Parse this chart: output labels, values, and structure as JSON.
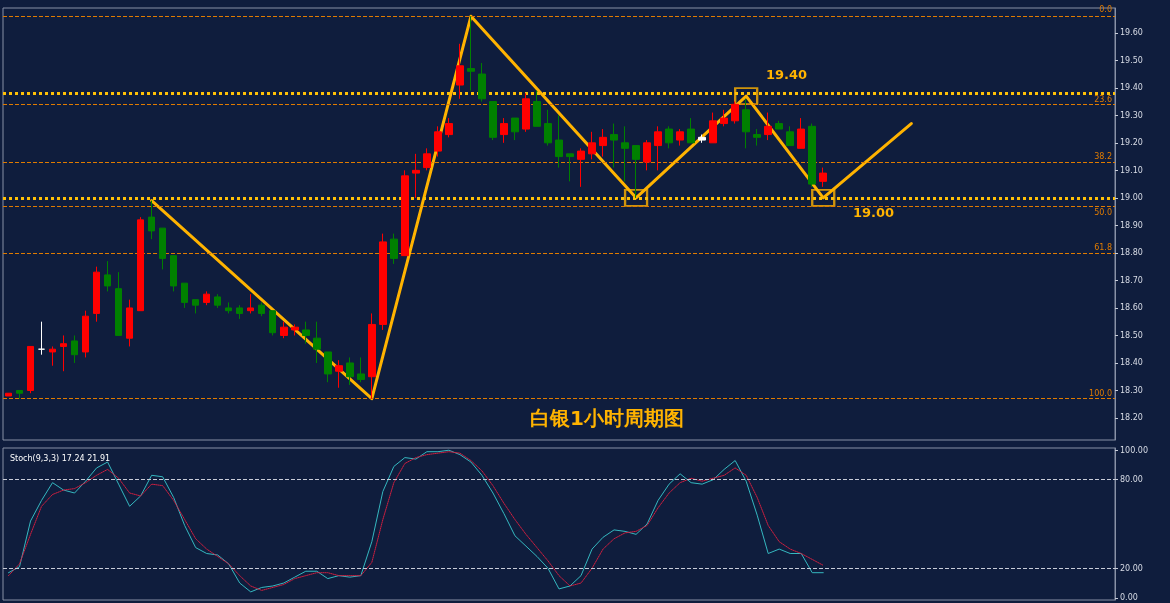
{
  "chart_data": [
    {
      "type": "candlestick",
      "title": "白银1小时周期图",
      "categories": [
        null,
        null,
        null,
        null,
        null,
        null,
        null,
        null,
        null,
        null,
        null,
        null,
        null,
        null,
        null,
        null,
        null,
        null,
        null,
        null,
        null,
        null,
        null,
        null,
        null,
        null,
        null,
        null,
        null,
        null,
        null,
        null,
        null,
        null,
        null,
        null,
        null,
        null,
        null,
        null,
        null,
        null,
        null,
        null,
        null,
        null,
        null,
        null,
        null,
        null,
        null,
        null,
        null,
        null,
        null,
        null,
        null,
        null,
        null,
        null,
        null,
        null,
        null,
        null,
        null,
        null,
        null,
        null,
        null,
        null,
        null,
        null,
        null,
        null,
        null,
        null,
        null,
        null,
        null,
        null,
        null,
        null,
        null,
        null,
        null,
        null,
        null,
        null,
        null,
        null,
        null,
        null,
        null,
        null,
        null,
        null,
        null,
        null,
        null,
        null,
        null
      ],
      "ohlc": [
        [
          18.28,
          18.29,
          18.28,
          18.29
        ],
        [
          18.3,
          18.3,
          18.27,
          18.29
        ],
        [
          18.3,
          18.46,
          18.29,
          18.46
        ],
        [
          18.45,
          18.55,
          18.43,
          18.45
        ],
        [
          18.44,
          18.46,
          18.39,
          18.45
        ],
        [
          18.46,
          18.5,
          18.37,
          18.47
        ],
        [
          18.48,
          18.5,
          18.4,
          18.43
        ],
        [
          18.44,
          18.59,
          18.42,
          18.57
        ],
        [
          18.58,
          18.75,
          18.55,
          18.73
        ],
        [
          18.72,
          18.77,
          18.66,
          18.68
        ],
        [
          18.67,
          18.73,
          18.5,
          18.5
        ],
        [
          18.49,
          18.63,
          18.46,
          18.6
        ],
        [
          18.59,
          18.93,
          18.59,
          18.92
        ],
        [
          18.93,
          18.99,
          18.85,
          18.88
        ],
        [
          18.89,
          18.89,
          18.74,
          18.78
        ],
        [
          18.79,
          18.79,
          18.66,
          18.68
        ],
        [
          18.69,
          18.69,
          18.6,
          18.62
        ],
        [
          18.63,
          18.63,
          18.58,
          18.61
        ],
        [
          18.62,
          18.66,
          18.61,
          18.65
        ],
        [
          18.64,
          18.65,
          18.6,
          18.61
        ],
        [
          18.6,
          18.62,
          18.58,
          18.59
        ],
        [
          18.6,
          18.61,
          18.56,
          18.58
        ],
        [
          18.59,
          18.65,
          18.58,
          18.6
        ],
        [
          18.61,
          18.62,
          18.57,
          18.58
        ],
        [
          18.59,
          18.59,
          18.5,
          18.51
        ],
        [
          18.5,
          18.55,
          18.49,
          18.53
        ],
        [
          18.52,
          18.54,
          18.5,
          18.53
        ],
        [
          18.52,
          18.55,
          18.47,
          18.5
        ],
        [
          18.49,
          18.55,
          18.4,
          18.45
        ],
        [
          18.44,
          18.44,
          18.33,
          18.36
        ],
        [
          18.37,
          18.41,
          18.31,
          18.39
        ],
        [
          18.4,
          18.42,
          18.32,
          18.35
        ],
        [
          18.36,
          18.42,
          18.33,
          18.34
        ],
        [
          18.35,
          18.58,
          18.27,
          18.54
        ],
        [
          18.54,
          18.87,
          18.52,
          18.84
        ],
        [
          18.85,
          18.87,
          18.76,
          18.78
        ],
        [
          18.79,
          19.1,
          18.79,
          19.08
        ],
        [
          19.09,
          19.16,
          19.0,
          19.1
        ],
        [
          19.11,
          19.18,
          19.1,
          19.16
        ],
        [
          19.17,
          19.26,
          19.15,
          19.24
        ],
        [
          19.23,
          19.29,
          19.22,
          19.27
        ],
        [
          19.41,
          19.56,
          19.36,
          19.48
        ],
        [
          19.47,
          19.66,
          19.39,
          19.46
        ],
        [
          19.45,
          19.49,
          19.35,
          19.36
        ],
        [
          19.35,
          19.35,
          19.21,
          19.22
        ],
        [
          19.23,
          19.29,
          19.2,
          19.27
        ],
        [
          19.29,
          19.29,
          19.21,
          19.24
        ],
        [
          19.25,
          19.38,
          19.24,
          19.36
        ],
        [
          19.35,
          19.39,
          19.26,
          19.26
        ],
        [
          19.27,
          19.32,
          19.19,
          19.2
        ],
        [
          19.21,
          19.3,
          19.11,
          19.15
        ],
        [
          19.16,
          19.16,
          19.06,
          19.15
        ],
        [
          19.14,
          19.18,
          19.04,
          19.17
        ],
        [
          19.16,
          19.24,
          19.14,
          19.2
        ],
        [
          19.19,
          19.25,
          19.15,
          19.22
        ],
        [
          19.23,
          19.27,
          19.11,
          19.21
        ],
        [
          19.2,
          19.26,
          19.06,
          19.18
        ],
        [
          19.19,
          19.19,
          19.0,
          19.14
        ],
        [
          19.13,
          19.21,
          19.1,
          19.2
        ],
        [
          19.19,
          19.26,
          19.1,
          19.24
        ],
        [
          19.25,
          19.26,
          19.18,
          19.2
        ],
        [
          19.21,
          19.25,
          19.19,
          19.24
        ],
        [
          19.25,
          19.29,
          19.2,
          19.2
        ],
        [
          19.22,
          19.23,
          19.2,
          19.21
        ],
        [
          19.2,
          19.31,
          19.2,
          19.28
        ],
        [
          19.27,
          19.32,
          19.26,
          19.29
        ],
        [
          19.28,
          19.35,
          19.27,
          19.34
        ],
        [
          19.32,
          19.36,
          19.18,
          19.24
        ],
        [
          19.23,
          19.25,
          19.19,
          19.22
        ],
        [
          19.23,
          19.31,
          19.21,
          19.26
        ],
        [
          19.27,
          19.28,
          19.25,
          19.25
        ],
        [
          19.24,
          19.26,
          19.19,
          19.19
        ],
        [
          19.18,
          19.29,
          19.18,
          19.25
        ],
        [
          19.26,
          19.27,
          19.04,
          19.05
        ],
        [
          19.06,
          19.11,
          19.04,
          19.09
        ],
        null,
        null,
        null,
        null,
        null,
        null,
        null,
        null,
        null,
        null,
        null,
        null,
        null,
        null,
        null,
        null,
        null,
        null,
        null,
        null,
        null,
        null,
        null,
        null,
        null,
        null
      ],
      "colors": [
        "#ff0000",
        "#008000",
        "#ff0000",
        "#ffffff",
        "#ff0000",
        "#ff0000",
        "#008000",
        "#ff0000",
        "#ff0000",
        "#008000",
        "#008000",
        "#ff0000",
        "#ff0000",
        "#008000",
        "#008000",
        "#008000",
        "#008000",
        "#008000",
        "#ff0000",
        "#008000",
        "#008000",
        "#008000",
        "#ff0000",
        "#008000",
        "#008000",
        "#ff0000",
        "#ff0000",
        "#008000",
        "#008000",
        "#008000",
        "#ff0000",
        "#008000",
        "#008000",
        "#ff0000",
        "#ff0000",
        "#008000",
        "#ff0000",
        "#ff0000",
        "#ff0000",
        "#ff0000",
        "#ff0000",
        "#ff0000",
        "#008000",
        "#008000",
        "#008000",
        "#ff0000",
        "#008000",
        "#ff0000",
        "#008000",
        "#008000",
        "#008000",
        "#008000",
        "#ff0000",
        "#ff0000",
        "#ff0000",
        "#008000",
        "#008000",
        "#008000",
        "#ff0000",
        "#ff0000",
        "#008000",
        "#ff0000",
        "#008000",
        "#ffffff",
        "#ff0000",
        "#ff0000",
        "#ff0000",
        "#008000",
        "#008000",
        "#ff0000",
        "#008000",
        "#008000",
        "#ff0000",
        "#008000",
        "#ff0000",
        null,
        null,
        null,
        null,
        null,
        null,
        null,
        null,
        null,
        null,
        null,
        null,
        null,
        null,
        null,
        null,
        null,
        null,
        null,
        null,
        null,
        null,
        null,
        null,
        null,
        null
      ],
      "series": [
        {
          "type": "line",
          "color": "#ffb300",
          "values": [
            null,
            null,
            null,
            null,
            null,
            null,
            null,
            null,
            null,
            null,
            null,
            null,
            null,
            18.99,
            null,
            null,
            null,
            null,
            null,
            null,
            null,
            null,
            null,
            null,
            null,
            null,
            null,
            null,
            null,
            null,
            null,
            null,
            null,
            18.27,
            null,
            null,
            null,
            null,
            null,
            null,
            null,
            null,
            19.66,
            null,
            null,
            null,
            null,
            null,
            null,
            null,
            null,
            null,
            null,
            null,
            null,
            null,
            null,
            19.0,
            null,
            null,
            null,
            null,
            null,
            null,
            null,
            null,
            null,
            19.37,
            null,
            null,
            null,
            null,
            null,
            null,
            19.0,
            null,
            null,
            null,
            null,
            null,
            null,
            null,
            19.27,
            null,
            null,
            null,
            null,
            null,
            null,
            null,
            null,
            null,
            null,
            null,
            null,
            null,
            null,
            null,
            null,
            null,
            null
          ]
        },
        {
          "type": "scatter",
          "color": "#ffb300",
          "marker": "square",
          "values": [
            null,
            null,
            null,
            null,
            null,
            null,
            null,
            null,
            null,
            null,
            null,
            null,
            null,
            null,
            null,
            null,
            null,
            null,
            null,
            null,
            null,
            null,
            null,
            null,
            null,
            null,
            null,
            null,
            null,
            null,
            null,
            null,
            null,
            null,
            null,
            null,
            null,
            null,
            null,
            null,
            null,
            null,
            null,
            null,
            null,
            null,
            null,
            null,
            null,
            null,
            null,
            null,
            null,
            null,
            null,
            null,
            null,
            19.0,
            null,
            null,
            null,
            null,
            null,
            null,
            null,
            null,
            null,
            19.37,
            null,
            null,
            null,
            null,
            null,
            null,
            19.0,
            null,
            null,
            null,
            null,
            null,
            null,
            null,
            null,
            null,
            null,
            null,
            null,
            null,
            null,
            null,
            null,
            null,
            null,
            null,
            null,
            null,
            null,
            null,
            null,
            null,
            null
          ]
        }
      ],
      "ylim": [
        18.12,
        19.69
      ],
      "yticks": [
        {
          "value": 18.2,
          "label": "18.20"
        },
        {
          "value": 18.3,
          "label": "18.30"
        },
        {
          "value": 18.4,
          "label": "18.40"
        },
        {
          "value": 18.5,
          "label": "18.50"
        },
        {
          "value": 18.6,
          "label": "18.60"
        },
        {
          "value": 18.7,
          "label": "18.70"
        },
        {
          "value": 18.8,
          "label": "18.80"
        },
        {
          "value": 18.9,
          "label": "18.90"
        },
        {
          "value": 19.0,
          "label": "19.00"
        },
        {
          "value": 19.1,
          "label": "19.10"
        },
        {
          "value": 19.2,
          "label": "19.20"
        },
        {
          "value": 19.3,
          "label": "19.30"
        },
        {
          "value": 19.4,
          "label": "19.40"
        },
        {
          "value": 19.5,
          "label": "19.50"
        },
        {
          "value": 19.6,
          "label": "19.60"
        }
      ],
      "ref_lines": [
        {
          "axis": "y",
          "value": 19.66,
          "color": "#e07b00",
          "line_style": "dashed"
        },
        {
          "axis": "y",
          "value": 19.34,
          "color": "#e07b00",
          "line_style": "dashed"
        },
        {
          "axis": "y",
          "value": 19.13,
          "color": "#e07b00",
          "line_style": "dashed"
        },
        {
          "axis": "y",
          "value": 18.97,
          "color": "#e07b00",
          "line_style": "dashed"
        },
        {
          "axis": "y",
          "value": 18.8,
          "color": "#e07b00",
          "line_style": "dashed"
        },
        {
          "axis": "y",
          "value": 18.27,
          "color": "#e07b00",
          "line_style": "dashed"
        },
        {
          "axis": "y",
          "value": 19.38,
          "color": "#ffc107",
          "line_style": "dotted"
        },
        {
          "axis": "y",
          "value": 19.0,
          "color": "#ffc107",
          "line_style": "dotted"
        }
      ],
      "annotations": [
        "19.40",
        "19.00",
        "0.0",
        "23.6",
        "38.2",
        "50.0",
        "61.8",
        "100.0"
      ],
      "tick_labels": "y",
      "marker": "none",
      "grid": false
    },
    {
      "type": "line",
      "title": "Stoch(9,3,3) 17.24 21.91",
      "categories": [
        null,
        null,
        null,
        null,
        null,
        null,
        null,
        null,
        null,
        null,
        null,
        null,
        null,
        null,
        null,
        null,
        null,
        null,
        null,
        null,
        null,
        null,
        null,
        null,
        null,
        null,
        null,
        null,
        null,
        null,
        null,
        null,
        null,
        null,
        null,
        null,
        null,
        null,
        null,
        null,
        null,
        null,
        null,
        null,
        null,
        null,
        null,
        null,
        null,
        null,
        null,
        null,
        null,
        null,
        null,
        null,
        null,
        null,
        null,
        null,
        null,
        null,
        null,
        null,
        null,
        null,
        null,
        null,
        null,
        null,
        null,
        null,
        null,
        null,
        null,
        null,
        null,
        null,
        null,
        null,
        null,
        null,
        null,
        null,
        null,
        null,
        null,
        null,
        null,
        null,
        null,
        null,
        null,
        null,
        null,
        null,
        null,
        null,
        null,
        null,
        null
      ],
      "series": [
        {
          "color": "#35b8c0",
          "line_style": "solid",
          "values": [
            17,
            21,
            52,
            66,
            78,
            73,
            71,
            79,
            88,
            92,
            77,
            62,
            69,
            83,
            82,
            68,
            49,
            34,
            30,
            29,
            23,
            10,
            4,
            7,
            8,
            10,
            14,
            18,
            18,
            13,
            15,
            14,
            15,
            38,
            72,
            89,
            95,
            94,
            99,
            99,
            100,
            97,
            92,
            83,
            71,
            57,
            42,
            35,
            28,
            20,
            6,
            8,
            15,
            33,
            41,
            46,
            45,
            43,
            50,
            66,
            77,
            84,
            78,
            77,
            80,
            87,
            93,
            79,
            56,
            30,
            33,
            30,
            30,
            17,
            17,
            null,
            null,
            null,
            null,
            null,
            null,
            null,
            null,
            null,
            null,
            null,
            null,
            null,
            null,
            null,
            null,
            null,
            null,
            null,
            null,
            null,
            null,
            null,
            null,
            null,
            null
          ]
        },
        {
          "color": "#d02040",
          "line_style": "dotted",
          "values": [
            15,
            23,
            43,
            62,
            70,
            73,
            74,
            78,
            83,
            87,
            81,
            71,
            69,
            77,
            76,
            66,
            53,
            40,
            33,
            28,
            23,
            15,
            8,
            5,
            7,
            9,
            13,
            15,
            17,
            17,
            15,
            15,
            15,
            24,
            53,
            78,
            91,
            95,
            97,
            98,
            99,
            98,
            93,
            86,
            76,
            64,
            53,
            43,
            34,
            25,
            15,
            8,
            10,
            20,
            33,
            40,
            44,
            45,
            49,
            61,
            71,
            78,
            81,
            79,
            81,
            83,
            88,
            83,
            68,
            49,
            38,
            33,
            30,
            26,
            22,
            null,
            null,
            null,
            null,
            null,
            null,
            null,
            null,
            null,
            null,
            null,
            null,
            null,
            null,
            null,
            null,
            null,
            null,
            null,
            null,
            null,
            null,
            null,
            null,
            null,
            null
          ]
        }
      ],
      "ylim": [
        -1.5,
        101.5
      ],
      "yticks": [
        {
          "value": 0,
          "label": "0.00"
        },
        {
          "value": 20,
          "label": "20.00"
        },
        {
          "value": 80,
          "label": "80.00"
        },
        {
          "value": 100,
          "label": "100.00"
        }
      ],
      "ref_lines": [
        {
          "axis": "y",
          "value": 20,
          "color": "#c8ccd8",
          "line_style": "dashed"
        },
        {
          "axis": "y",
          "value": 80,
          "color": "#c8ccd8",
          "line_style": "dashed"
        }
      ],
      "tick_labels": "y",
      "marker": "none",
      "grid": false
    }
  ]
}
